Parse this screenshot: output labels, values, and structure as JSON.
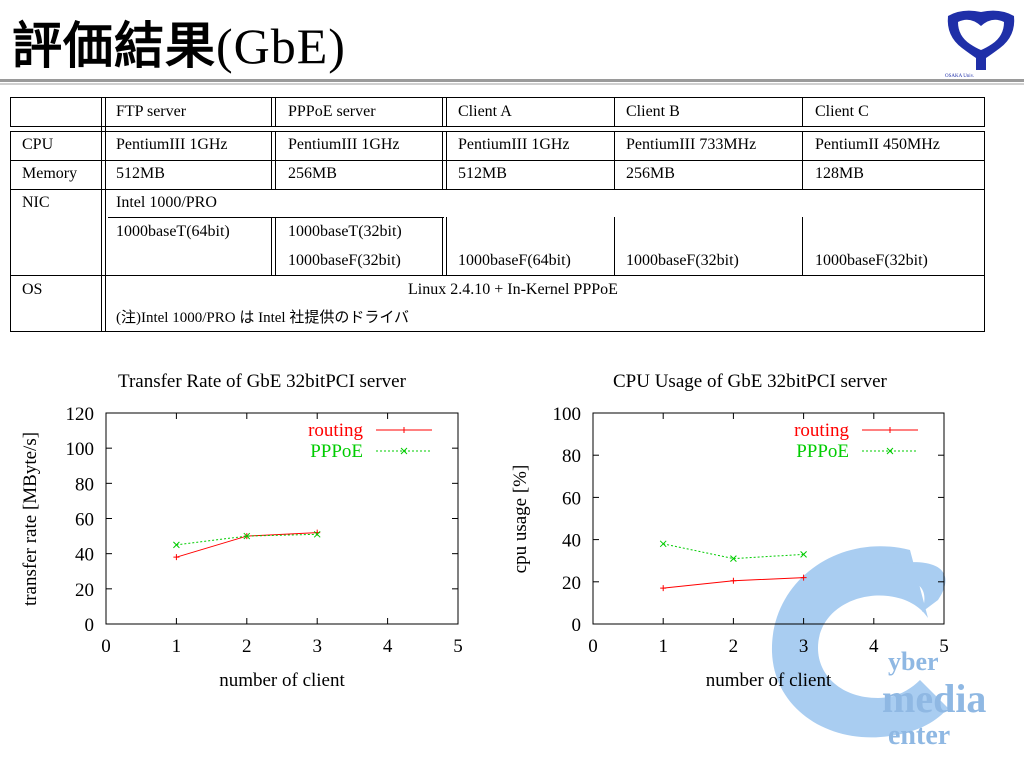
{
  "page": {
    "title_jp": "評価結果",
    "title_gbe": "(GbE)",
    "logo_text": "OSAKA Univ."
  },
  "table": {
    "headers": [
      "",
      "FTP server",
      "PPPoE server",
      "Client A",
      "Client B",
      "Client C"
    ],
    "cpu": [
      "CPU",
      "PentiumIII 1GHz",
      "PentiumIII 1GHz",
      "PentiumIII 1GHz",
      "PentiumIII 733MHz",
      "PentiumII 450MHz"
    ],
    "memory": [
      "Memory",
      "512MB",
      "256MB",
      "512MB",
      "256MB",
      "128MB"
    ],
    "nic_label": "NIC",
    "nic_common": "Intel 1000/PRO",
    "nic_row2": [
      "1000baseT(64bit)",
      "1000baseT(32bit)"
    ],
    "nic_row3": [
      "1000baseF(32bit)",
      "1000baseF(64bit)",
      "1000baseF(32bit)",
      "1000baseF(32bit)"
    ],
    "os_label": "OS",
    "os_value": "Linux 2.4.10 + In-Kernel PPPoE",
    "note": "(注)Intel 1000/PRO は Intel 社提供のドライバ"
  },
  "watermark": {
    "line1": "yber",
    "line2": "media",
    "line3": "enter"
  },
  "colors": {
    "routing": "#ff0000",
    "pppoe": "#00cc00"
  },
  "chart_data": [
    {
      "type": "line",
      "title": "Transfer Rate of GbE 32bitPCI server",
      "xlabel": "number of client",
      "ylabel": "transfer rate [MByte/s]",
      "xlim": [
        0,
        5
      ],
      "ylim": [
        0,
        120
      ],
      "xticks": [
        0,
        1,
        2,
        3,
        4,
        5
      ],
      "yticks": [
        0,
        20,
        40,
        60,
        80,
        100,
        120
      ],
      "legend": "top-right",
      "series": [
        {
          "name": "routing",
          "x": [
            1,
            2,
            3
          ],
          "values": [
            38,
            50,
            52
          ]
        },
        {
          "name": "PPPoE",
          "x": [
            1,
            2,
            3
          ],
          "values": [
            45,
            50,
            51
          ]
        }
      ]
    },
    {
      "type": "line",
      "title": "CPU Usage of GbE 32bitPCI server",
      "xlabel": "number of client",
      "ylabel": "cpu usage [%]",
      "xlim": [
        0,
        5
      ],
      "ylim": [
        0,
        100
      ],
      "xticks": [
        0,
        1,
        2,
        3,
        4,
        5
      ],
      "yticks": [
        0,
        20,
        40,
        60,
        80,
        100
      ],
      "legend": "top-right",
      "series": [
        {
          "name": "routing",
          "x": [
            1,
            2,
            3
          ],
          "values": [
            17,
            20.5,
            22
          ]
        },
        {
          "name": "PPPoE",
          "x": [
            1,
            2,
            3
          ],
          "values": [
            38,
            31,
            33
          ]
        }
      ]
    }
  ]
}
